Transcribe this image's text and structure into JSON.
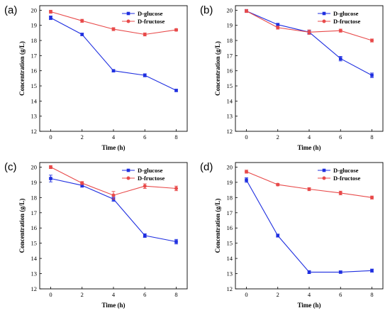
{
  "colors": {
    "glucose": "#1f2fe0",
    "fructose": "#e84a4a"
  },
  "chart_data": [
    {
      "panel": "(a)",
      "type": "line",
      "x": [
        0,
        2,
        4,
        6,
        8
      ],
      "series": [
        {
          "name": "D-glucose",
          "values": [
            19.5,
            18.4,
            16.0,
            15.7,
            14.7
          ],
          "errors": [
            0.12,
            0.08,
            0.08,
            0.1,
            0.07
          ]
        },
        {
          "name": "D-fructose",
          "values": [
            19.9,
            19.3,
            18.75,
            18.4,
            18.7
          ],
          "errors": [
            0.1,
            0.1,
            0.1,
            0.1,
            0.08
          ]
        }
      ],
      "xlabel": "Time (h)",
      "ylabel": "Concentration (g/L)",
      "xticks": [
        "0",
        "2",
        "4",
        "6",
        "8"
      ],
      "yticks": [
        "12",
        "13",
        "14",
        "15",
        "16",
        "17",
        "18",
        "19",
        "20"
      ],
      "xlim": [
        -0.7,
        8.7
      ],
      "ylim": [
        12,
        20.3
      ],
      "legend": "top-right",
      "grid": false
    },
    {
      "panel": "(b)",
      "type": "line",
      "x": [
        0,
        2,
        4,
        6,
        8
      ],
      "series": [
        {
          "name": "D-glucose",
          "values": [
            19.95,
            19.05,
            18.55,
            16.8,
            15.7
          ],
          "errors": [
            0.1,
            0.08,
            0.1,
            0.15,
            0.15
          ]
        },
        {
          "name": "D-fructose",
          "values": [
            19.95,
            18.85,
            18.55,
            18.65,
            18.0
          ],
          "errors": [
            0.1,
            0.1,
            0.15,
            0.1,
            0.1
          ]
        }
      ],
      "xlabel": "Time (h)",
      "ylabel": "Concentration (g/L)",
      "xticks": [
        "0",
        "2",
        "4",
        "6",
        "8"
      ],
      "yticks": [
        "12",
        "13",
        "14",
        "15",
        "16",
        "17",
        "18",
        "19",
        "20"
      ],
      "xlim": [
        -0.7,
        8.7
      ],
      "ylim": [
        12,
        20.3
      ],
      "legend": "top-right",
      "grid": false
    },
    {
      "panel": "(c)",
      "type": "line",
      "x": [
        0,
        2,
        4,
        6,
        8
      ],
      "series": [
        {
          "name": "D-glucose",
          "values": [
            19.25,
            18.8,
            17.9,
            15.5,
            15.1
          ],
          "errors": [
            0.22,
            0.12,
            0.15,
            0.12,
            0.15
          ]
        },
        {
          "name": "D-fructose",
          "values": [
            20.0,
            18.95,
            18.15,
            18.75,
            18.6
          ],
          "errors": [
            0.1,
            0.1,
            0.25,
            0.15,
            0.15
          ]
        }
      ],
      "xlabel": "Time (h)",
      "ylabel": "Concentration (g/L)",
      "xticks": [
        "0",
        "2",
        "4",
        "6",
        "8"
      ],
      "yticks": [
        "12",
        "13",
        "14",
        "15",
        "16",
        "17",
        "18",
        "19",
        "20"
      ],
      "xlim": [
        -0.7,
        8.7
      ],
      "ylim": [
        12,
        20.3
      ],
      "legend": "top-right",
      "grid": false
    },
    {
      "panel": "(d)",
      "type": "line",
      "x": [
        0,
        2,
        4,
        6,
        8
      ],
      "series": [
        {
          "name": "D-glucose",
          "values": [
            19.15,
            15.5,
            13.1,
            13.1,
            13.2
          ],
          "errors": [
            0.15,
            0.1,
            0.1,
            0.08,
            0.1
          ]
        },
        {
          "name": "D-fructose",
          "values": [
            19.7,
            18.85,
            18.55,
            18.3,
            18.0
          ],
          "errors": [
            0.1,
            0.08,
            0.1,
            0.12,
            0.1
          ]
        }
      ],
      "xlabel": "Time (h)",
      "ylabel": "Concentration (g/L)",
      "xticks": [
        "0",
        "2",
        "4",
        "6",
        "8"
      ],
      "yticks": [
        "12",
        "13",
        "14",
        "15",
        "16",
        "17",
        "18",
        "19",
        "20"
      ],
      "xlim": [
        -0.7,
        8.7
      ],
      "ylim": [
        12,
        20.3
      ],
      "legend": "top-right",
      "grid": false
    }
  ]
}
